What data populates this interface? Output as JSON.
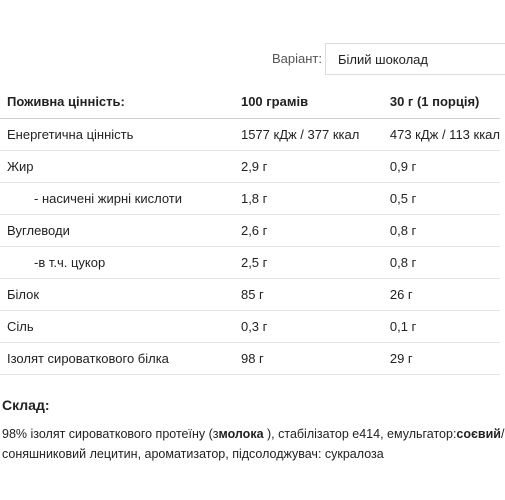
{
  "variant": {
    "label": "Варіант:",
    "selected": "Білий шоколад"
  },
  "nutrition": {
    "headers": [
      "Поживна цінність:",
      "100 грамів",
      "30 г (1 порція)"
    ],
    "rows": [
      {
        "name": "Енергетична цінність",
        "per100": "1577 кДж / 377 ккал",
        "perServing": "473 кДж / 113 ккал"
      },
      {
        "name": "Жир",
        "per100": "2,9 г",
        "perServing": "0,9 г"
      },
      {
        "name": "- насичені жирні кислоти",
        "per100": "1,8 г",
        "perServing": "0,5 г"
      },
      {
        "name": "Вуглеводи",
        "per100": "2,6 г",
        "perServing": "0,8 г"
      },
      {
        "name": "-в т.ч. цукор",
        "per100": "2,5 г",
        "perServing": "0,8 г"
      },
      {
        "name": "Білок",
        "per100": "85 г",
        "perServing": "26 г"
      },
      {
        "name": "Сіль",
        "per100": "0,3 г",
        "perServing": "0,1 г"
      },
      {
        "name": "Ізолят сироваткового білка",
        "per100": "98 г",
        "perServing": "29 г"
      }
    ]
  },
  "composition": {
    "title": "Склад:",
    "line1_part1": "98% ізолят сироваткового протеїну (з",
    "line1_bold1": "молока",
    "line1_part2": " ), стабілізатор е414, емульгатор:",
    "line1_bold2": "соєвий",
    "line1_part3": "/",
    "line2": "соняшниковий лецитин, ароматизатор, підсолоджувач: сукралоза"
  }
}
